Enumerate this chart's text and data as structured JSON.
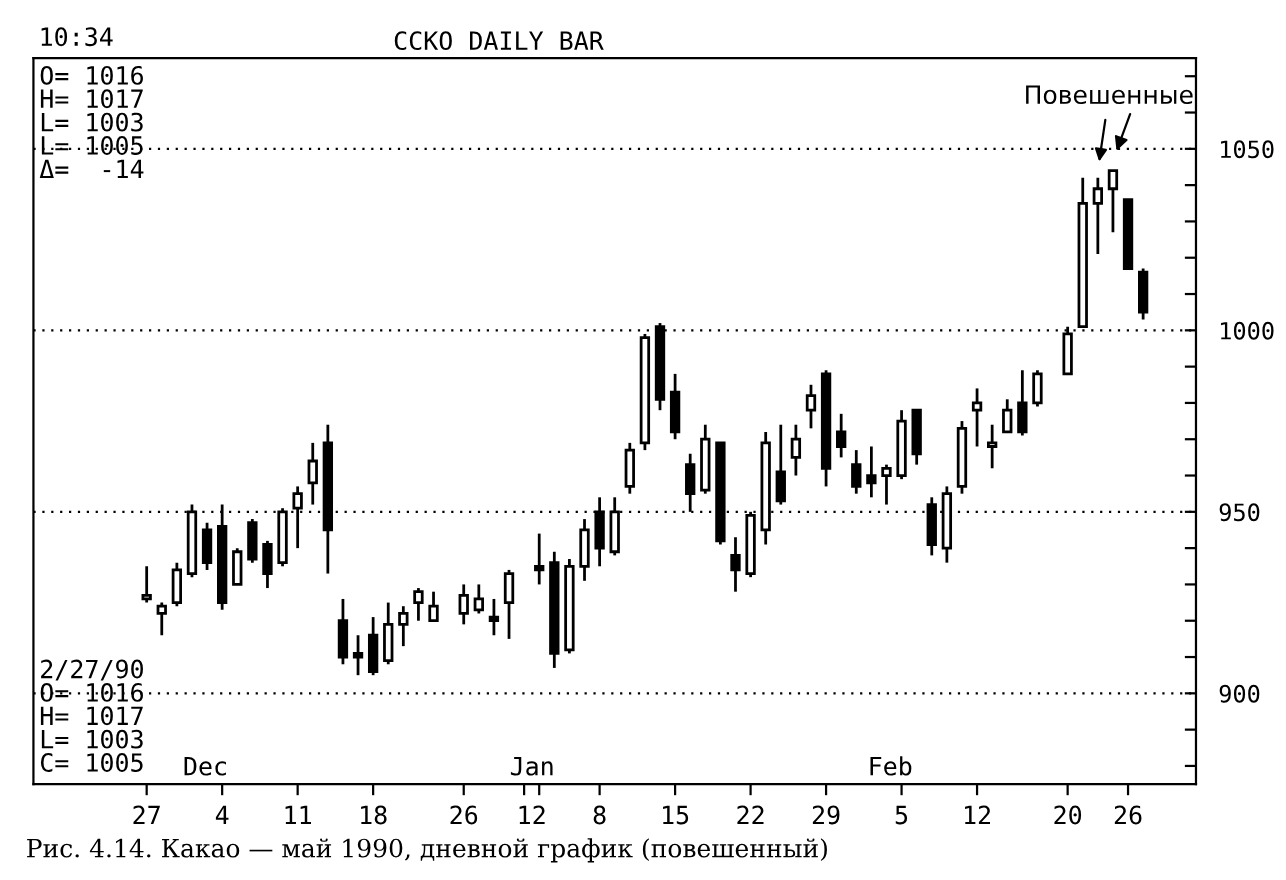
{
  "chart_data": {
    "type": "candlestick",
    "title": "CCKO DAILY BAR",
    "categories": [
      null,
      null,
      null,
      null,
      null,
      null,
      null,
      "27",
      null,
      null,
      null,
      null,
      "4",
      null,
      null,
      null,
      null,
      "11",
      null,
      null,
      null,
      null,
      "18",
      null,
      null,
      null,
      null,
      null,
      "26",
      null,
      null,
      null,
      "1",
      "2",
      null,
      null,
      null,
      "8",
      null,
      null,
      null,
      null,
      "15",
      null,
      null,
      null,
      null,
      "22",
      null,
      null,
      null,
      null,
      "29",
      null,
      null,
      null,
      null,
      "5",
      null,
      null,
      null,
      null,
      "12",
      null,
      null,
      null,
      null,
      null,
      "20",
      null,
      null,
      null,
      "26",
      null,
      null,
      null,
      null
    ],
    "ohlc": [
      null,
      null,
      null,
      null,
      null,
      null,
      null,
      [
        926,
        935,
        925,
        927
      ],
      [
        922,
        925,
        916,
        924
      ],
      [
        925,
        936,
        924,
        934
      ],
      [
        933,
        952,
        932,
        950
      ],
      [
        945,
        947,
        934,
        936
      ],
      [
        946,
        952,
        923,
        925
      ],
      [
        930,
        940,
        930,
        939
      ],
      [
        947,
        948,
        936,
        937
      ],
      [
        941,
        942,
        929,
        933
      ],
      [
        936,
        951,
        935,
        950
      ],
      [
        951,
        957,
        940,
        955
      ],
      [
        958,
        969,
        952,
        964
      ],
      [
        969,
        974,
        933,
        945
      ],
      [
        920,
        926,
        908,
        910
      ],
      [
        911,
        916,
        905,
        910
      ],
      [
        916,
        921,
        905,
        906
      ],
      [
        909,
        925,
        908,
        919
      ],
      [
        919,
        924,
        913,
        922
      ],
      [
        925,
        929,
        920,
        928
      ],
      [
        920,
        928,
        920,
        924
      ],
      null,
      [
        922,
        930,
        919,
        927
      ],
      [
        923,
        930,
        922,
        926
      ],
      [
        921,
        926,
        916,
        920
      ],
      [
        925,
        934,
        915,
        933
      ],
      null,
      [
        935,
        944,
        930,
        934
      ],
      [
        936,
        939,
        907,
        911
      ],
      [
        912,
        937,
        911,
        935
      ],
      [
        935,
        948,
        931,
        945
      ],
      [
        950,
        954,
        935,
        940
      ],
      [
        939,
        954,
        938,
        950
      ],
      [
        957,
        969,
        955,
        967
      ],
      [
        969,
        999,
        967,
        998
      ],
      [
        1001,
        1002,
        978,
        981
      ],
      [
        983,
        988,
        970,
        972
      ],
      [
        963,
        966,
        950,
        955
      ],
      [
        956,
        974,
        955,
        970
      ],
      [
        969,
        969,
        941,
        942
      ],
      [
        938,
        943,
        928,
        934
      ],
      [
        933,
        950,
        932,
        949
      ],
      [
        945,
        972,
        941,
        969
      ],
      [
        961,
        974,
        952,
        953
      ],
      [
        965,
        974,
        960,
        970
      ],
      [
        978,
        985,
        973,
        982
      ],
      [
        988,
        989,
        957,
        962
      ],
      [
        972,
        977,
        965,
        968
      ],
      [
        963,
        967,
        955,
        957
      ],
      [
        960,
        968,
        954,
        958
      ],
      [
        960,
        963,
        952,
        962
      ],
      [
        960,
        978,
        959,
        975
      ],
      [
        978,
        978,
        963,
        966
      ],
      [
        952,
        954,
        938,
        941
      ],
      [
        940,
        957,
        936,
        955
      ],
      [
        957,
        975,
        955,
        973
      ],
      [
        978,
        984,
        968,
        980
      ],
      [
        968,
        974,
        962,
        969
      ],
      [
        972,
        981,
        972,
        978
      ],
      [
        980,
        989,
        971,
        972
      ],
      [
        980,
        989,
        979,
        988
      ],
      null,
      [
        988,
        1001,
        988,
        999
      ],
      [
        1001,
        1042,
        1001,
        1035
      ],
      [
        1035,
        1042,
        1021,
        1039
      ],
      [
        1039,
        1044,
        1027,
        1044
      ],
      [
        1036,
        1036,
        1017,
        1017
      ],
      [
        1016,
        1017,
        1003,
        1005
      ],
      null,
      null,
      null
    ],
    "ylim": [
      875,
      1075
    ],
    "yticks": [
      {
        "value": 880,
        "label": null
      },
      {
        "value": 890,
        "label": null
      },
      900,
      {
        "value": 910,
        "label": null
      },
      {
        "value": 920,
        "label": null
      },
      {
        "value": 930,
        "label": null
      },
      {
        "value": 940,
        "label": null
      },
      950,
      {
        "value": 960,
        "label": null
      },
      {
        "value": 970,
        "label": null
      },
      {
        "value": 980,
        "label": null
      },
      {
        "value": 990,
        "label": null
      },
      1000,
      {
        "value": 1010,
        "label": null
      },
      {
        "value": 1020,
        "label": null
      },
      {
        "value": 1030,
        "label": null
      },
      {
        "value": 1040,
        "label": null
      },
      1050,
      {
        "value": 1060,
        "label": null
      },
      {
        "value": 1070,
        "label": null
      }
    ],
    "grid": "y",
    "color": "#000000",
    "annotations": [
      "O= 1016\nH= 1017\nL= 1003\nL= 1005\nΔ=  -14",
      "2/27/90\nO= 1016\nH= 1017\nL= 1003\nC= 1005",
      "10:34",
      "Повешенные",
      "Dec",
      "Jan",
      "Feb",
      "Рис. 4.14. Какао — май 1990, дневной график (повешенный)"
    ]
  }
}
